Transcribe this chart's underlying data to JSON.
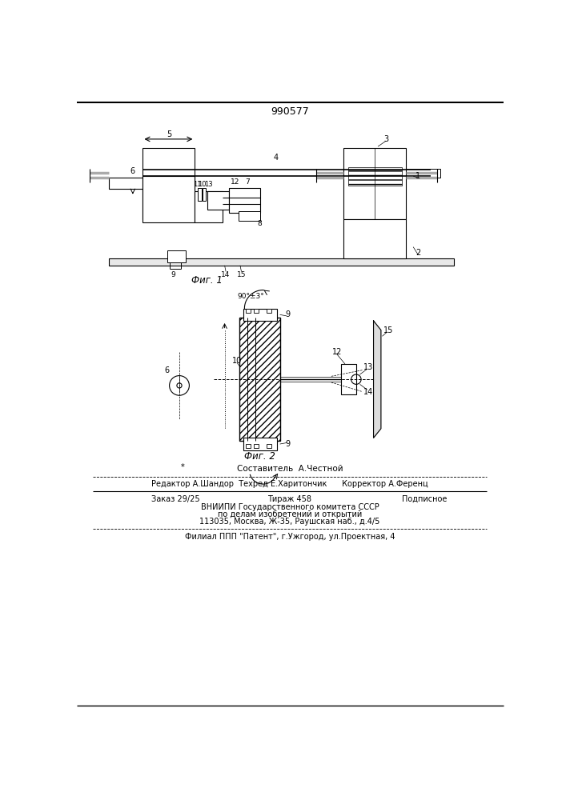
{
  "patent_number": "990577",
  "fig1_caption": "Фиг. 1",
  "fig2_caption": "Фиг. 2",
  "footer_lines": [
    "Составитель  А.Честной",
    "Редактор А.Шандор  Техред Е.Харитончик      Корректор А.Ференц",
    "Заказ 29/25        Тираж 458                Подписное",
    "ВНИИПИ Государственного комитета СССР",
    "по делам изобретений и открытий",
    "113035, Москва, Ж-35, Раушская наб., д.4/5",
    "Филиал ППП \"Патент\", г.Ужгород, ул.Проектная, 4"
  ],
  "bg_color": "#ffffff"
}
